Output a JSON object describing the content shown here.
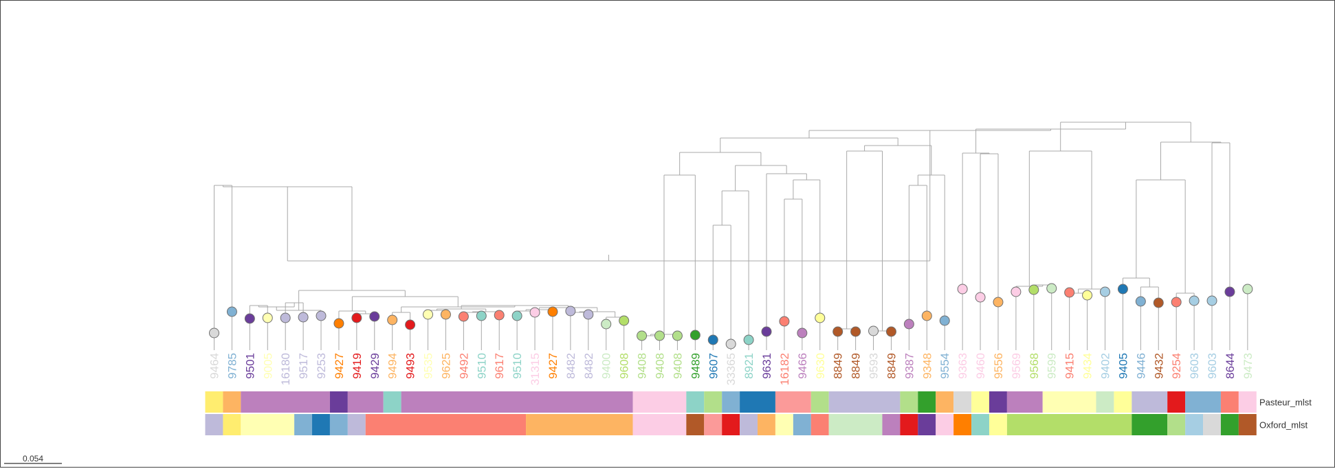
{
  "tree": {
    "scale_label": "0.054",
    "tracks": [
      {
        "name": "Pasteur_mlst",
        "segments": [
          {
            "from": 0,
            "to": 1,
            "color": "#ffed6f"
          },
          {
            "from": 1,
            "to": 2,
            "color": "#fdb462"
          },
          {
            "from": 2,
            "to": 7,
            "color": "#bc80bd"
          },
          {
            "from": 7,
            "to": 8,
            "color": "#6a3d9a"
          },
          {
            "from": 8,
            "to": 10,
            "color": "#bc80bd"
          },
          {
            "from": 10,
            "to": 11,
            "color": "#8dd3c7"
          },
          {
            "from": 11,
            "to": 24,
            "color": "#bc80bd"
          },
          {
            "from": 24,
            "to": 27,
            "color": "#fccde5"
          },
          {
            "from": 27,
            "to": 28,
            "color": "#8dd3c7"
          },
          {
            "from": 28,
            "to": 29,
            "color": "#b2df8a"
          },
          {
            "from": 29,
            "to": 30,
            "color": "#80b1d3"
          },
          {
            "from": 30,
            "to": 32,
            "color": "#1f78b4"
          },
          {
            "from": 32,
            "to": 34,
            "color": "#fb9a99"
          },
          {
            "from": 34,
            "to": 35,
            "color": "#b2df8a"
          },
          {
            "from": 35,
            "to": 39,
            "color": "#bebada"
          },
          {
            "from": 39,
            "to": 40,
            "color": "#b2df8a"
          },
          {
            "from": 40,
            "to": 41,
            "color": "#33a02c"
          },
          {
            "from": 41,
            "to": 42,
            "color": "#fdb462"
          },
          {
            "from": 42,
            "to": 43,
            "color": "#d9d9d9"
          },
          {
            "from": 43,
            "to": 44,
            "color": "#ffff99"
          },
          {
            "from": 44,
            "to": 45,
            "color": "#6a3d9a"
          },
          {
            "from": 45,
            "to": 47,
            "color": "#bc80bd"
          },
          {
            "from": 47,
            "to": 50,
            "color": "#ffffb3"
          },
          {
            "from": 50,
            "to": 51,
            "color": "#ccebc5"
          },
          {
            "from": 51,
            "to": 52,
            "color": "#ffff99"
          },
          {
            "from": 52,
            "to": 54,
            "color": "#bebada"
          },
          {
            "from": 54,
            "to": 55,
            "color": "#e31a1c"
          },
          {
            "from": 55,
            "to": 57,
            "color": "#80b1d3"
          },
          {
            "from": 57,
            "to": 58,
            "color": "#fb8072"
          },
          {
            "from": 58,
            "to": 59,
            "color": "#fccde5"
          }
        ]
      },
      {
        "name": "Oxford_mlst",
        "segments": [
          {
            "from": 0,
            "to": 1,
            "color": "#bebada"
          },
          {
            "from": 1,
            "to": 2,
            "color": "#ffed6f"
          },
          {
            "from": 2,
            "to": 5,
            "color": "#ffffb3"
          },
          {
            "from": 5,
            "to": 6,
            "color": "#80b1d3"
          },
          {
            "from": 6,
            "to": 7,
            "color": "#1f78b4"
          },
          {
            "from": 7,
            "to": 8,
            "color": "#80b1d3"
          },
          {
            "from": 8,
            "to": 9,
            "color": "#bebada"
          },
          {
            "from": 9,
            "to": 18,
            "color": "#fb8072"
          },
          {
            "from": 18,
            "to": 24,
            "color": "#fdb462"
          },
          {
            "from": 24,
            "to": 27,
            "color": "#fccde5"
          },
          {
            "from": 27,
            "to": 28,
            "color": "#b15928"
          },
          {
            "from": 28,
            "to": 29,
            "color": "#fb9a99"
          },
          {
            "from": 29,
            "to": 30,
            "color": "#e31a1c"
          },
          {
            "from": 30,
            "to": 31,
            "color": "#bebada"
          },
          {
            "from": 31,
            "to": 32,
            "color": "#fdb462"
          },
          {
            "from": 32,
            "to": 33,
            "color": "#ffffb3"
          },
          {
            "from": 33,
            "to": 34,
            "color": "#80b1d3"
          },
          {
            "from": 34,
            "to": 35,
            "color": "#fb8072"
          },
          {
            "from": 35,
            "to": 38,
            "color": "#ccebc5"
          },
          {
            "from": 38,
            "to": 39,
            "color": "#bc80bd"
          },
          {
            "from": 39,
            "to": 40,
            "color": "#e31a1c"
          },
          {
            "from": 40,
            "to": 41,
            "color": "#6a3d9a"
          },
          {
            "from": 41,
            "to": 42,
            "color": "#fccde5"
          },
          {
            "from": 42,
            "to": 43,
            "color": "#ff7f00"
          },
          {
            "from": 43,
            "to": 44,
            "color": "#8dd3c7"
          },
          {
            "from": 44,
            "to": 45,
            "color": "#ffff99"
          },
          {
            "from": 45,
            "to": 52,
            "color": "#b3de69"
          },
          {
            "from": 52,
            "to": 54,
            "color": "#33a02c"
          },
          {
            "from": 54,
            "to": 55,
            "color": "#b2df8a"
          },
          {
            "from": 55,
            "to": 56,
            "color": "#a6cee3"
          },
          {
            "from": 56,
            "to": 57,
            "color": "#d9d9d9"
          },
          {
            "from": 57,
            "to": 58,
            "color": "#33a02c"
          },
          {
            "from": 58,
            "to": 59,
            "color": "#b15928"
          }
        ]
      }
    ],
    "leaves": [
      {
        "label": "9464",
        "color": "#d9d9d9"
      },
      {
        "label": "9785",
        "color": "#80b1d3"
      },
      {
        "label": "9501",
        "color": "#6a3d9a"
      },
      {
        "label": "9005",
        "color": "#ffffb3"
      },
      {
        "label": "16180",
        "color": "#bebada"
      },
      {
        "label": "9517",
        "color": "#bebada"
      },
      {
        "label": "9253",
        "color": "#bebada"
      },
      {
        "label": "9427",
        "color": "#ff7f00"
      },
      {
        "label": "9419",
        "color": "#e31a1c"
      },
      {
        "label": "9429",
        "color": "#6a3d9a"
      },
      {
        "label": "9494",
        "color": "#fdb462"
      },
      {
        "label": "9493",
        "color": "#e31a1c"
      },
      {
        "label": "9535",
        "color": "#ffffb3"
      },
      {
        "label": "9625",
        "color": "#fdb462"
      },
      {
        "label": "9492",
        "color": "#fb8072"
      },
      {
        "label": "9510",
        "color": "#8dd3c7"
      },
      {
        "label": "9617",
        "color": "#fb8072"
      },
      {
        "label": "9510",
        "color": "#8dd3c7"
      },
      {
        "label": "31315",
        "color": "#fccde5"
      },
      {
        "label": "9427",
        "color": "#ff7f00"
      },
      {
        "label": "8482",
        "color": "#bebada"
      },
      {
        "label": "8482",
        "color": "#bebada"
      },
      {
        "label": "9400",
        "color": "#ccebc5"
      },
      {
        "label": "9608",
        "color": "#b3de69"
      },
      {
        "label": "9408",
        "color": "#b2df8a"
      },
      {
        "label": "9408",
        "color": "#b2df8a"
      },
      {
        "label": "9408",
        "color": "#b2df8a"
      },
      {
        "label": "9489",
        "color": "#33a02c"
      },
      {
        "label": "9607",
        "color": "#1f78b4"
      },
      {
        "label": "33365",
        "color": "#d9d9d9"
      },
      {
        "label": "8921",
        "color": "#8dd3c7"
      },
      {
        "label": "9631",
        "color": "#6a3d9a"
      },
      {
        "label": "16182",
        "color": "#fb8072"
      },
      {
        "label": "9466",
        "color": "#bc80bd"
      },
      {
        "label": "9630",
        "color": "#ffff99"
      },
      {
        "label": "8849",
        "color": "#b15928"
      },
      {
        "label": "8849",
        "color": "#b15928"
      },
      {
        "label": "9593",
        "color": "#d9d9d9"
      },
      {
        "label": "8849",
        "color": "#b15928"
      },
      {
        "label": "9387",
        "color": "#bc80bd"
      },
      {
        "label": "9348",
        "color": "#fdb462"
      },
      {
        "label": "9554",
        "color": "#80b1d3"
      },
      {
        "label": "9363",
        "color": "#fccde5"
      },
      {
        "label": "9460",
        "color": "#fccde5"
      },
      {
        "label": "9556",
        "color": "#fdb462"
      },
      {
        "label": "9569",
        "color": "#fccde5"
      },
      {
        "label": "9568",
        "color": "#b3de69"
      },
      {
        "label": "9599",
        "color": "#ccebc5"
      },
      {
        "label": "9415",
        "color": "#fb8072"
      },
      {
        "label": "9434",
        "color": "#ffff99"
      },
      {
        "label": "9402",
        "color": "#a6cee3"
      },
      {
        "label": "9405",
        "color": "#1f78b4"
      },
      {
        "label": "9446",
        "color": "#80b1d3"
      },
      {
        "label": "9432",
        "color": "#b15928"
      },
      {
        "label": "9254",
        "color": "#fb8072"
      },
      {
        "label": "9603",
        "color": "#a6cee3"
      },
      {
        "label": "9603",
        "color": "#a6cee3"
      },
      {
        "label": "8644",
        "color": "#6a3d9a"
      },
      {
        "label": "9473",
        "color": "#ccebc5"
      }
    ]
  }
}
